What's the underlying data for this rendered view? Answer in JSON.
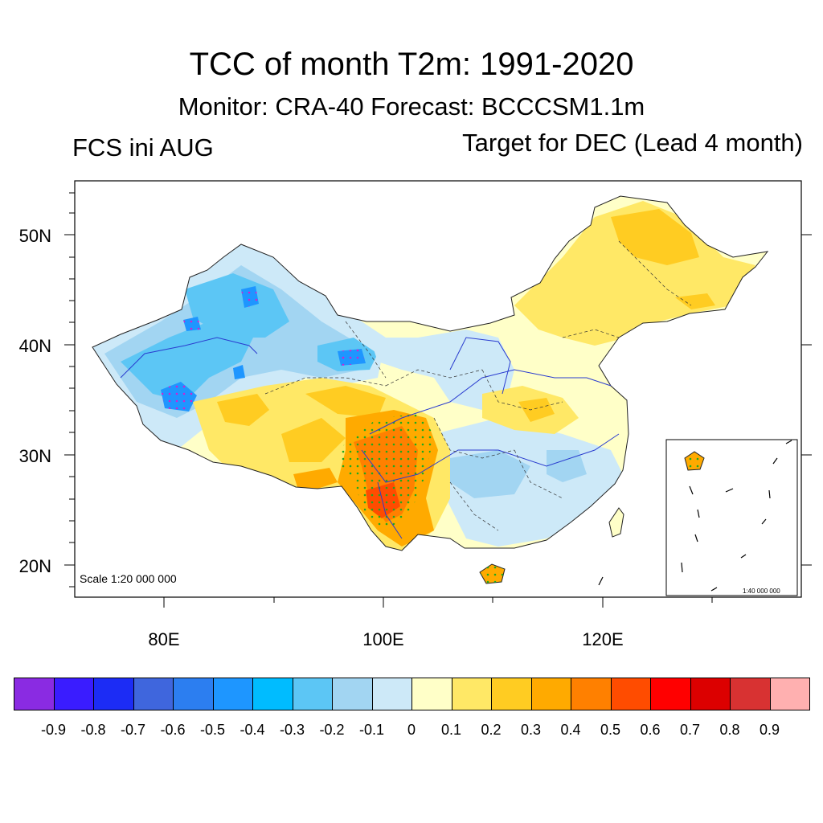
{
  "header": {
    "title": "TCC of month T2m: 1991-2020",
    "subtitle": "Monitor: CRA-40   Forecast: BCCCSM1.1m",
    "left_label": "FCS ini AUG",
    "right_label": "Target for DEC (Lead 4 month)"
  },
  "axes": {
    "lat_labels": [
      "50N",
      "40N",
      "30N",
      "20N"
    ],
    "lon_labels": [
      "80E",
      "100E",
      "120E"
    ]
  },
  "map": {
    "scale_main": "Scale 1:20 000 000",
    "scale_inset": "1:40 000 000",
    "colors": {
      "neg_09": "#8a2be2",
      "neg_08": "#3a1cff",
      "neg_07": "#1c2cf5",
      "neg_06": "#3f66dd",
      "neg_05": "#2c7ef0",
      "neg_04": "#1e96ff",
      "neg_03": "#00bcff",
      "neg_02": "#5cc6f5",
      "neg_01": "#a2d5f2",
      "zero": "#cde9f8",
      "pos_01": "#ffffc8",
      "pos_02": "#ffe866",
      "pos_03": "#ffcc22",
      "pos_04": "#ffaa00",
      "pos_05": "#ff8000",
      "pos_06": "#ff4c00",
      "pos_07": "#ff0000",
      "pos_08": "#dc0000",
      "pos_09": "#d83232",
      "pos_10": "#ffb0b0"
    }
  },
  "colorbar": {
    "colors": [
      "#8a2be2",
      "#3a1cff",
      "#1c2cf5",
      "#3f66dd",
      "#2c7ef0",
      "#1e96ff",
      "#00bcff",
      "#5cc6f5",
      "#a2d5f2",
      "#cde9f8",
      "#ffffc8",
      "#ffe866",
      "#ffcc22",
      "#ffaa00",
      "#ff8000",
      "#ff4c00",
      "#ff0000",
      "#dc0000",
      "#d83232",
      "#ffb0b0"
    ],
    "labels": [
      "-0.9",
      "-0.8",
      "-0.7",
      "-0.6",
      "-0.5",
      "-0.4",
      "-0.3",
      "-0.2",
      "-0.1",
      "0",
      "0.1",
      "0.2",
      "0.3",
      "0.4",
      "0.5",
      "0.6",
      "0.7",
      "0.8",
      "0.9"
    ]
  }
}
